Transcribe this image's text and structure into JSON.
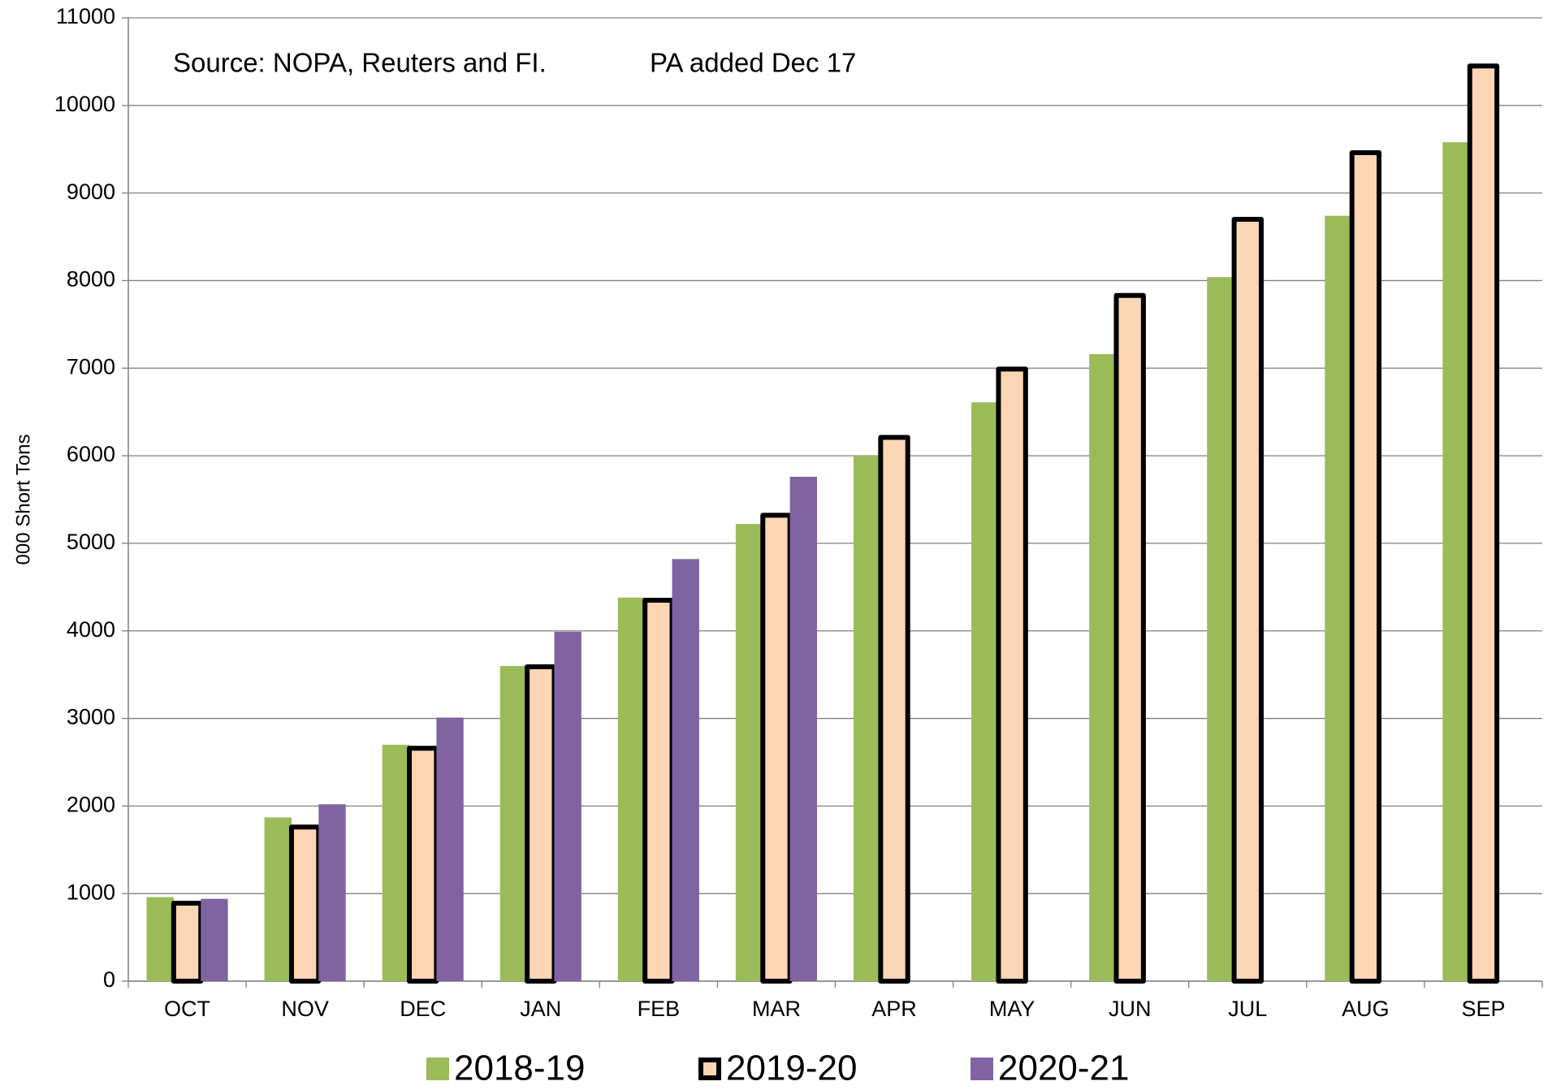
{
  "chart_data": {
    "type": "bar",
    "y_label": "000 Short Tons",
    "annotations": [
      "Source: NOPA, Reuters and FI.",
      "PA added Dec 17"
    ],
    "categories": [
      "OCT",
      "NOV",
      "DEC",
      "JAN",
      "FEB",
      "MAR",
      "APR",
      "MAY",
      "JUN",
      "JUL",
      "AUG",
      "SEP"
    ],
    "series": [
      {
        "name": "2018-19",
        "color": "#9bbb59",
        "values": [
          960,
          1870,
          2700,
          3600,
          4380,
          5220,
          6000,
          6610,
          7160,
          8040,
          8740,
          9580
        ]
      },
      {
        "name": "2019-20",
        "color": "#fcd5b5",
        "outline": "#000000",
        "values": [
          890,
          1760,
          2660,
          3590,
          4350,
          5320,
          6210,
          6990,
          7830,
          8700,
          9460,
          10450
        ]
      },
      {
        "name": "2020-21",
        "color": "#8064a2",
        "values": [
          940,
          2020,
          3010,
          3990,
          4820,
          5760,
          null,
          null,
          null,
          null,
          null,
          null
        ]
      }
    ],
    "ylim": [
      0,
      11000
    ],
    "yticks": [
      0,
      1000,
      2000,
      3000,
      4000,
      5000,
      6000,
      7000,
      8000,
      9000,
      10000,
      11000
    ],
    "grid": true,
    "legend": "bottom"
  }
}
